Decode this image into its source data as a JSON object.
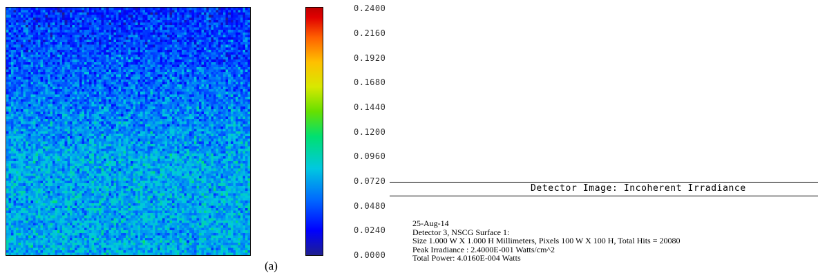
{
  "chart_data": {
    "type": "heatmap",
    "title": "Detector Image: Incoherent Irradiance",
    "grid_size": [
      100,
      100
    ],
    "value_range": [
      0.0,
      0.24
    ],
    "colorbar": {
      "min": 0.0,
      "max": 0.24,
      "ticks": [
        "0.2400",
        "0.2160",
        "0.1920",
        "0.1680",
        "0.1440",
        "0.1200",
        "0.0960",
        "0.0720",
        "0.0480",
        "0.0240",
        "0.0000"
      ]
    },
    "row_mean_top": 0.035,
    "row_mean_bottom": 0.075,
    "noise_amplitude": 0.03,
    "grid": false,
    "legend": "colorbar-right"
  },
  "info_lines": [
    "25-Aug-14",
    "Detector 3, NSCG Surface 1:",
    "Size 1.000 W X 1.000 H Millimeters, Pixels 100 W X 100 H, Total Hits = 20080",
    "Peak Irradiance : 2.4000E-001 Watts/cm^2",
    "Total Power: 4.0160E-004 Watts"
  ],
  "caption": "(a)"
}
